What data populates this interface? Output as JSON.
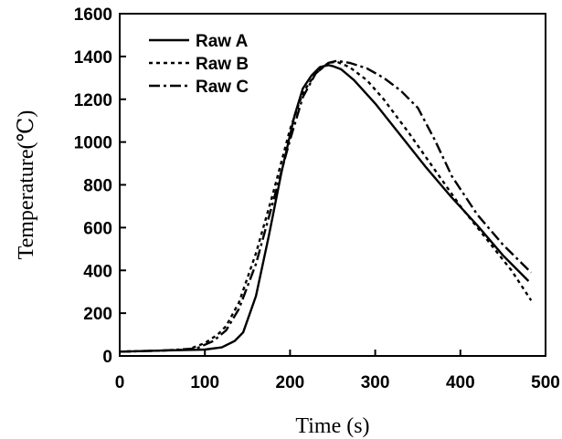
{
  "chart_data": {
    "type": "line",
    "xlabel": "Time (s)",
    "ylabel": "Temperature(℃)",
    "xlim": [
      0,
      500
    ],
    "ylim": [
      0,
      1600
    ],
    "xticks": [
      "0",
      "100",
      "200",
      "300",
      "400",
      "500"
    ],
    "yticks": [
      "0",
      "200",
      "400",
      "600",
      "800",
      "1000",
      "1200",
      "1400",
      "1600"
    ],
    "grid": false,
    "legend_position": "top-left",
    "series": [
      {
        "name": "Raw A",
        "style": "solid",
        "x": [
          0,
          50,
          100,
          120,
          135,
          145,
          160,
          175,
          190,
          205,
          215,
          225,
          235,
          245,
          250,
          260,
          275,
          300,
          330,
          360,
          390,
          420,
          450,
          480
        ],
        "y": [
          20,
          25,
          30,
          40,
          70,
          110,
          280,
          560,
          860,
          1120,
          1250,
          1310,
          1350,
          1360,
          1355,
          1340,
          1290,
          1180,
          1030,
          880,
          740,
          610,
          470,
          350
        ]
      },
      {
        "name": "Raw B",
        "style": "dotted",
        "x": [
          0,
          50,
          80,
          100,
          115,
          125,
          140,
          160,
          180,
          200,
          215,
          230,
          245,
          255,
          270,
          290,
          310,
          340,
          370,
          400,
          430,
          460,
          483
        ],
        "y": [
          20,
          25,
          30,
          60,
          100,
          140,
          250,
          480,
          760,
          1060,
          1230,
          1320,
          1370,
          1375,
          1350,
          1290,
          1200,
          1040,
          870,
          700,
          550,
          400,
          260
        ]
      },
      {
        "name": "Raw C",
        "style": "dashdot",
        "x": [
          0,
          50,
          90,
          110,
          125,
          140,
          160,
          180,
          200,
          215,
          230,
          245,
          255,
          270,
          290,
          310,
          330,
          350,
          370,
          390,
          420,
          450,
          483
        ],
        "y": [
          20,
          25,
          35,
          70,
          120,
          220,
          430,
          720,
          1010,
          1210,
          1320,
          1370,
          1380,
          1370,
          1345,
          1300,
          1240,
          1160,
          1010,
          840,
          660,
          520,
          390
        ]
      }
    ]
  }
}
